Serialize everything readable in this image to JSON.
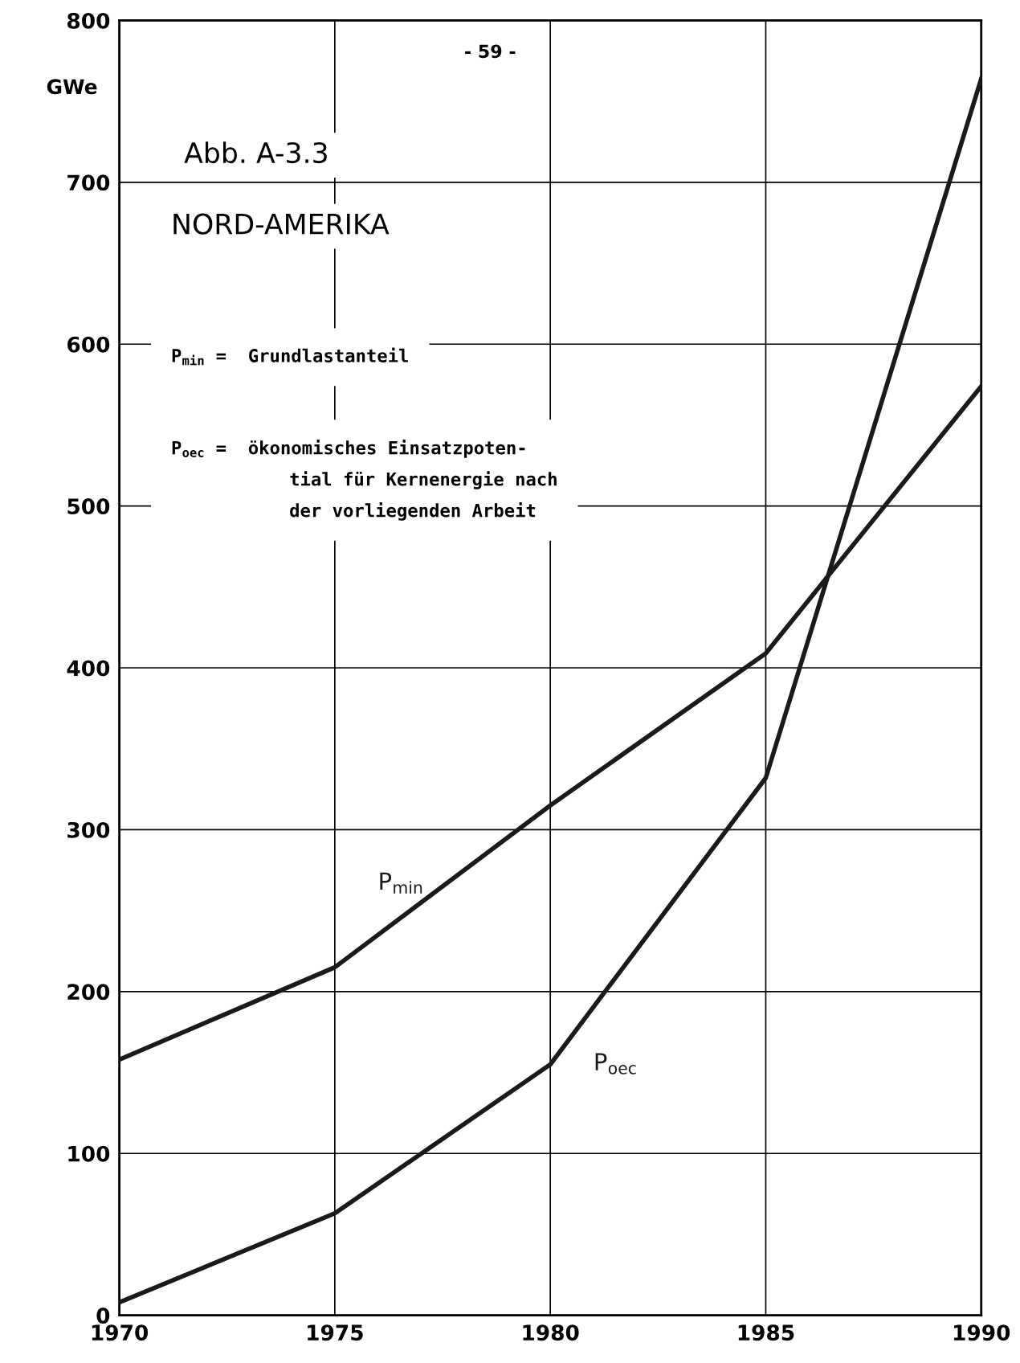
{
  "chart_data": {
    "type": "line",
    "title": "Abb. A-3.3",
    "subtitle": "NORD-AMERIKA",
    "ylabel": "GWe",
    "annotations": [
      "- 59 -",
      "P$_{min}$ =  Grundlastanteil",
      "P$_{oec}$ =  ökonomisches Einsatzpoten-\n           tial für Kernenergie nach\n           der vorliegenden Arbeit"
    ],
    "x": [
      1970,
      1975,
      1980,
      1985,
      1990
    ],
    "series": [
      {
        "name": "P$_{min}$",
        "color": "#1a1a1a",
        "values": [
          158,
          215,
          315,
          409,
          574
        ]
      },
      {
        "name": "P$_{oec}$",
        "color": "#1a1a1a",
        "values": [
          8,
          63,
          155,
          332,
          764
        ]
      }
    ],
    "xlim": [
      1970,
      1990
    ],
    "xticks": [
      1970,
      1975,
      1980,
      1985,
      1990
    ],
    "ylim": [
      0,
      800
    ],
    "yticks": [
      0,
      100,
      200,
      300,
      400,
      500,
      600,
      700,
      800
    ],
    "grid": true,
    "legend": false,
    "marker": "none",
    "line_style": "solid"
  }
}
